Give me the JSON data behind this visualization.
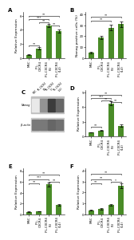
{
  "panel_A": {
    "label": "A",
    "ylabel": "Relative Expression",
    "categories": [
      "MSC",
      "iPL-\nCXCR4",
      "iPL-CXCR4\n(5)",
      "iPL-CXCR4\n(14)"
    ],
    "values": [
      0.45,
      1.4,
      4.6,
      3.8
    ],
    "errors": [
      0.05,
      0.12,
      0.25,
      0.25
    ],
    "ylim": [
      0,
      6.5
    ],
    "yticks": [
      0,
      2,
      4,
      6
    ],
    "sig_pairs": [
      {
        "pair": [
          0,
          1
        ],
        "y": 1.75,
        "label": "**"
      },
      {
        "pair": [
          1,
          2
        ],
        "y": 5.05,
        "label": "**"
      },
      {
        "pair": [
          0,
          2
        ],
        "y": 5.55,
        "label": "***"
      },
      {
        "pair": [
          0,
          3
        ],
        "y": 6.0,
        "label": "**"
      },
      {
        "pair": [
          2,
          3
        ],
        "y": 4.6,
        "label": "**"
      }
    ]
  },
  "panel_B": {
    "label": "B",
    "ylabel": "Nanog positive cells (%)",
    "categories": [
      "MSC",
      "iPL-\nCXCR4",
      "iPL-CXCR4\n(5)",
      "iPL-CXCR4\n(14)"
    ],
    "values": [
      5,
      19,
      28,
      31
    ],
    "errors": [
      0.5,
      1.5,
      2.5,
      2.5
    ],
    "ylim": [
      0,
      42
    ],
    "yticks": [
      0,
      10,
      20,
      30,
      40
    ],
    "sig_pairs": [
      {
        "pair": [
          0,
          2
        ],
        "y": 34,
        "label": "**"
      },
      {
        "pair": [
          0,
          3
        ],
        "y": 38,
        "label": "**"
      }
    ]
  },
  "panel_C": {
    "label": "C",
    "col_labels": [
      "MSC",
      "iPL-CXCR4\nD4",
      "iPL-CXCR4\n(5)",
      "iPL-CXCR4\n(14)"
    ],
    "row_labels": [
      "Nanog",
      "β-actin"
    ],
    "nanog_intensities": [
      0.1,
      0.5,
      0.9,
      0.7
    ],
    "actin_intensities": [
      0.7,
      0.7,
      0.8,
      0.75
    ]
  },
  "panel_D": {
    "label": "D",
    "ylabel": "Relative Expression",
    "categories": [
      "MSC",
      "iPL-\nCXCR4",
      "iPL-CXCR4\n(5)",
      "iPL-CXCR4\n(14)"
    ],
    "values": [
      0.8,
      1.2,
      6.8,
      2.2
    ],
    "errors": [
      0.08,
      0.12,
      0.45,
      0.2
    ],
    "ylim": [
      0,
      9.5
    ],
    "yticks": [
      0,
      3,
      6,
      9
    ],
    "sig_pairs": [
      {
        "pair": [
          0,
          1
        ],
        "y": 1.9,
        "label": "**"
      },
      {
        "pair": [
          1,
          2
        ],
        "y": 7.4,
        "label": "**"
      },
      {
        "pair": [
          0,
          2
        ],
        "y": 7.9,
        "label": "***"
      },
      {
        "pair": [
          0,
          3
        ],
        "y": 8.5,
        "label": "**"
      },
      {
        "pair": [
          2,
          3
        ],
        "y": 7.0,
        "label": "**"
      }
    ]
  },
  "panel_E": {
    "label": "E",
    "ylabel": "Relative Expression",
    "categories": [
      "MSC",
      "iPL-\nCXCR4",
      "iPL-CXCR4\n(5)",
      "iPL-CXCR4\n(14)"
    ],
    "values": [
      0.45,
      0.55,
      5.5,
      1.7
    ],
    "errors": [
      0.04,
      0.05,
      0.35,
      0.15
    ],
    "ylim": [
      0,
      8.5
    ],
    "yticks": [
      0,
      2,
      4,
      6,
      8
    ],
    "sig_pairs": [
      {
        "pair": [
          0,
          1
        ],
        "y": 5.7,
        "label": "**"
      },
      {
        "pair": [
          0,
          2
        ],
        "y": 6.5,
        "label": "***"
      },
      {
        "pair": [
          0,
          3
        ],
        "y": 7.3,
        "label": "**"
      },
      {
        "pair": [
          2,
          3
        ],
        "y": 6.0,
        "label": "**"
      }
    ]
  },
  "panel_F": {
    "label": "F",
    "ylabel": "Relative Expression",
    "categories": [
      "MSC",
      "iPL-\nCXCR4",
      "iPL-CXCR4\n(5)",
      "iPL-CXCR4\n(14)"
    ],
    "values": [
      0.38,
      0.48,
      0.85,
      2.6
    ],
    "errors": [
      0.04,
      0.05,
      0.08,
      0.2
    ],
    "ylim": [
      0,
      4.2
    ],
    "yticks": [
      0,
      1,
      2,
      3,
      4
    ],
    "sig_pairs": [
      {
        "pair": [
          0,
          1
        ],
        "y": 2.8,
        "label": "**"
      },
      {
        "pair": [
          0,
          2
        ],
        "y": 3.2,
        "label": "**"
      },
      {
        "pair": [
          0,
          3
        ],
        "y": 3.7,
        "label": "**"
      },
      {
        "pair": [
          2,
          3
        ],
        "y": 2.95,
        "label": "*"
      }
    ]
  },
  "bar_color": "#4a8c28",
  "background": "#ffffff",
  "sig_fontsize": 3.0,
  "label_fontsize": 5,
  "tick_fontsize": 2.8,
  "ylabel_fontsize": 3.2
}
